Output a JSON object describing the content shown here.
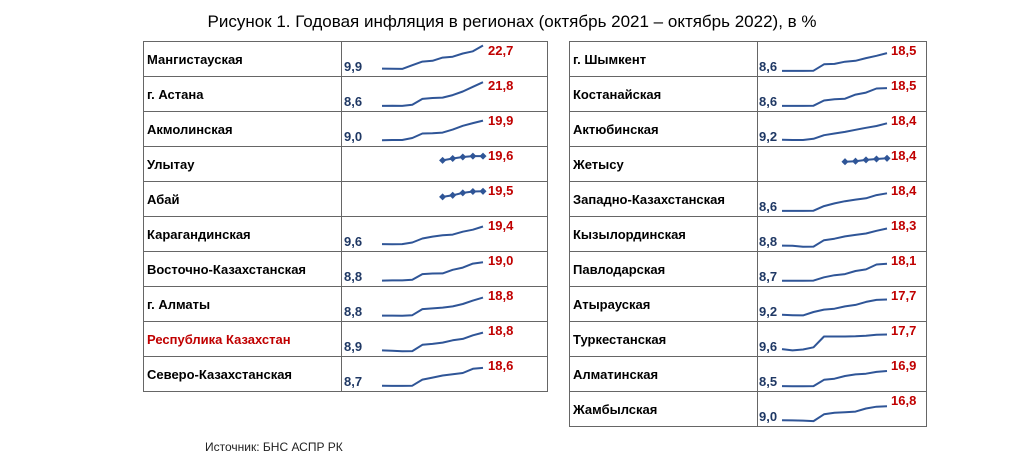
{
  "title": "Рисунок 1. Годовая инфляция в регионах (октябрь 2021 – октябрь 2022), в %",
  "source": "Источник: БНС АСПР РК",
  "chart_data": {
    "type": "line",
    "series_color": "#2f5597",
    "label_color_start": "#1f3864",
    "label_color_end": "#c00000",
    "left": [
      {
        "name": "Мангистауская",
        "start": "9,9",
        "end": "22,7",
        "values": [
          9.9,
          9.8,
          9.7,
          11.8,
          13.8,
          14.2,
          16.0,
          16.5,
          18.3,
          19.5,
          22.7
        ],
        "markers": false,
        "highlight": false
      },
      {
        "name": "г. Астана",
        "start": "8,6",
        "end": "21,8",
        "values": [
          8.6,
          8.7,
          8.6,
          9.3,
          12.5,
          13.0,
          13.2,
          14.6,
          16.6,
          19.2,
          21.8
        ],
        "markers": false,
        "highlight": false
      },
      {
        "name": "Акмолинская",
        "start": "9,0",
        "end": "19,9",
        "values": [
          9.0,
          9.1,
          9.1,
          10.2,
          12.7,
          12.9,
          13.2,
          14.9,
          17.0,
          18.5,
          19.9
        ],
        "markers": false,
        "highlight": false
      },
      {
        "name": "Улытау",
        "start": "",
        "end": "19,6",
        "values": [
          null,
          null,
          null,
          null,
          null,
          null,
          17.2,
          18.3,
          19.1,
          19.6,
          19.6
        ],
        "markers": true,
        "highlight": false
      },
      {
        "name": "Абай",
        "start": "",
        "end": "19,5",
        "values": [
          null,
          null,
          null,
          null,
          null,
          null,
          16.4,
          17.3,
          18.6,
          19.4,
          19.5
        ],
        "markers": true,
        "highlight": false
      },
      {
        "name": "Карагандинская",
        "start": "9,6",
        "end": "19,4",
        "values": [
          9.6,
          9.5,
          9.6,
          10.5,
          12.7,
          13.8,
          14.5,
          14.9,
          16.5,
          17.6,
          19.4
        ],
        "markers": false,
        "highlight": false
      },
      {
        "name": "Восточно-Казахстанская",
        "start": "8,8",
        "end": "19,0",
        "values": [
          8.8,
          8.9,
          8.9,
          9.2,
          12.4,
          12.7,
          12.8,
          14.8,
          16.0,
          18.2,
          19.0
        ],
        "markers": false,
        "highlight": false
      },
      {
        "name": "г. Алматы",
        "start": "8,8",
        "end": "18,8",
        "values": [
          8.8,
          8.8,
          8.7,
          9.0,
          12.4,
          12.8,
          13.2,
          13.9,
          15.2,
          17.1,
          18.8
        ],
        "markers": false,
        "highlight": false
      },
      {
        "name": "Республика Казахстан",
        "start": "8,9",
        "end": "18,8",
        "values": [
          8.9,
          8.7,
          8.4,
          8.5,
          12.0,
          12.5,
          13.2,
          14.5,
          15.3,
          17.3,
          18.8
        ],
        "markers": false,
        "highlight": true
      },
      {
        "name": "Северо-Казахстанская",
        "start": "8,7",
        "end": "18,6",
        "values": [
          8.7,
          8.6,
          8.6,
          8.7,
          12.1,
          13.2,
          14.4,
          15.1,
          15.8,
          18.1,
          18.6
        ],
        "markers": false,
        "highlight": false
      }
    ],
    "right": [
      {
        "name": "г. Шымкент",
        "start": "8,6",
        "end": "18,5",
        "values": [
          8.6,
          8.6,
          8.6,
          8.7,
          12.3,
          12.5,
          13.7,
          14.2,
          15.7,
          17.0,
          18.5
        ],
        "markers": false,
        "highlight": false
      },
      {
        "name": "Костанайская",
        "start": "8,6",
        "end": "18,5",
        "values": [
          8.6,
          8.6,
          8.6,
          8.7,
          11.6,
          12.3,
          12.6,
          14.9,
          16.0,
          18.3,
          18.5
        ],
        "markers": false,
        "highlight": false
      },
      {
        "name": "Актюбинская",
        "start": "9,2",
        "end": "18,4",
        "values": [
          9.2,
          9.1,
          9.1,
          9.8,
          11.8,
          12.7,
          13.6,
          14.8,
          15.9,
          16.9,
          18.4
        ],
        "markers": false,
        "highlight": false
      },
      {
        "name": "Жетысу",
        "start": "",
        "end": "18,4",
        "values": [
          null,
          null,
          null,
          null,
          null,
          null,
          16.5,
          16.8,
          17.5,
          18.0,
          18.4
        ],
        "markers": true,
        "highlight": false
      },
      {
        "name": "Западно-Казахстанская",
        "start": "8,6",
        "end": "18,4",
        "values": [
          8.6,
          8.6,
          8.6,
          8.7,
          11.3,
          12.8,
          14.0,
          14.9,
          15.6,
          17.4,
          18.4
        ],
        "markers": false,
        "highlight": false
      },
      {
        "name": "Кызылординская",
        "start": "8,8",
        "end": "18,3",
        "values": [
          8.8,
          8.7,
          8.1,
          8.2,
          11.8,
          12.6,
          13.9,
          14.7,
          15.5,
          17.0,
          18.3
        ],
        "markers": false,
        "highlight": false
      },
      {
        "name": "Павлодарская",
        "start": "8,7",
        "end": "18,1",
        "values": [
          8.7,
          8.7,
          8.7,
          8.8,
          10.6,
          11.8,
          12.4,
          14.1,
          15.0,
          17.7,
          18.1
        ],
        "markers": false,
        "highlight": false
      },
      {
        "name": "Атырауская",
        "start": "9,2",
        "end": "17,7",
        "values": [
          9.2,
          9.0,
          8.9,
          10.8,
          12.1,
          12.6,
          13.9,
          14.7,
          16.4,
          17.5,
          17.7
        ],
        "markers": false,
        "highlight": false
      },
      {
        "name": "Туркестанская",
        "start": "9,6",
        "end": "17,7",
        "values": [
          9.6,
          8.9,
          9.4,
          10.6,
          16.6,
          16.6,
          16.6,
          16.7,
          17.0,
          17.6,
          17.7
        ],
        "markers": false,
        "highlight": false
      },
      {
        "name": "Алматинская",
        "start": "8,5",
        "end": "16,9",
        "values": [
          8.5,
          8.4,
          8.4,
          8.5,
          12.0,
          12.6,
          14.1,
          15.0,
          15.4,
          16.4,
          16.9
        ],
        "markers": false,
        "highlight": false
      },
      {
        "name": "Жамбылская",
        "start": "9,0",
        "end": "16,8",
        "values": [
          9.0,
          8.9,
          8.8,
          8.5,
          12.3,
          13.1,
          13.4,
          13.8,
          15.5,
          16.5,
          16.8
        ],
        "markers": false,
        "highlight": false
      }
    ]
  }
}
